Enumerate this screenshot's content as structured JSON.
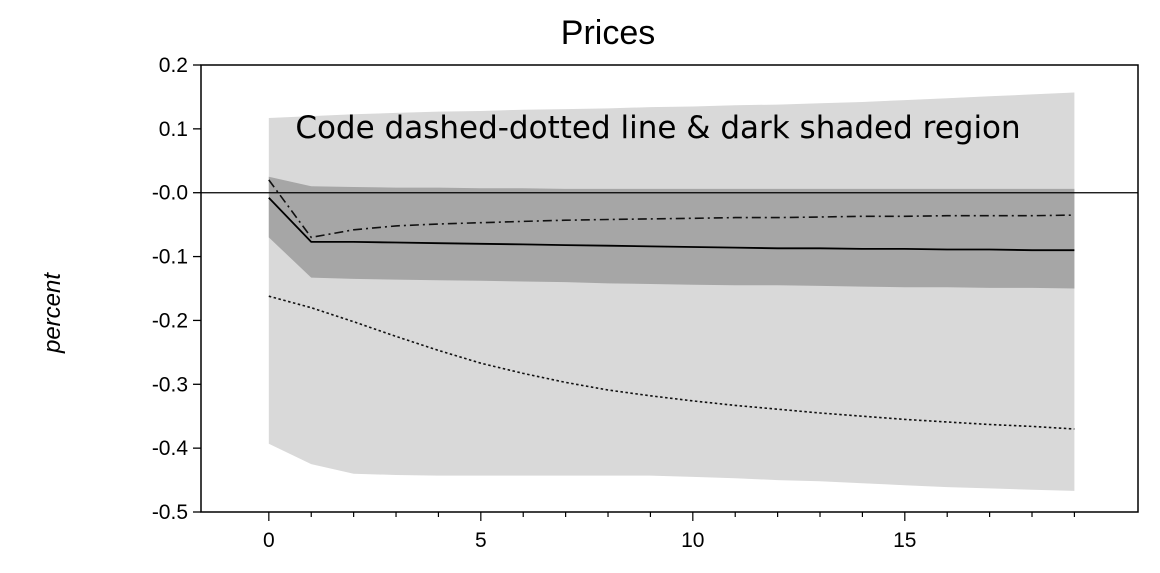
{
  "chart_data": {
    "type": "line",
    "title": "Prices",
    "xlabel": "",
    "ylabel": "percent",
    "xlim": [
      -1.6,
      20.5
    ],
    "ylim": [
      -0.5,
      0.2
    ],
    "x_ticks": [
      0,
      5,
      10,
      15
    ],
    "x_tick_labels": [
      "0",
      "5",
      "10",
      "15"
    ],
    "y_ticks": [
      0.2,
      0.1,
      0.0,
      -0.1,
      -0.2,
      -0.3,
      -0.4,
      -0.5
    ],
    "y_tick_labels": [
      "0.2",
      "0.1",
      "-0.0",
      "-0.1",
      "-0.2",
      "-0.3",
      "-0.4",
      "-0.5"
    ],
    "zero_line": true,
    "annotation": "Code dashed-dotted line & dark shaded region",
    "x": [
      0,
      1,
      2,
      3,
      4,
      5,
      6,
      7,
      8,
      9,
      10,
      11,
      12,
      13,
      14,
      15,
      16,
      17,
      18,
      19
    ],
    "bands": [
      {
        "shade": "light",
        "color": "#d9d9d9",
        "upper": [
          0.117,
          0.12,
          0.123,
          0.125,
          0.127,
          0.128,
          0.13,
          0.131,
          0.132,
          0.134,
          0.135,
          0.137,
          0.138,
          0.14,
          0.142,
          0.145,
          0.148,
          0.151,
          0.154,
          0.157
        ],
        "lower": [
          -0.393,
          -0.425,
          -0.44,
          -0.442,
          -0.443,
          -0.443,
          -0.443,
          -0.443,
          -0.443,
          -0.443,
          -0.445,
          -0.447,
          -0.45,
          -0.452,
          -0.455,
          -0.458,
          -0.461,
          -0.463,
          -0.465,
          -0.467
        ]
      },
      {
        "shade": "dark",
        "color": "#a6a6a6",
        "upper": [
          0.025,
          0.01,
          0.009,
          0.008,
          0.008,
          0.007,
          0.007,
          0.006,
          0.006,
          0.006,
          0.006,
          0.006,
          0.006,
          0.006,
          0.006,
          0.006,
          0.006,
          0.006,
          0.006,
          0.006
        ],
        "lower": [
          -0.07,
          -0.133,
          -0.135,
          -0.136,
          -0.137,
          -0.138,
          -0.139,
          -0.14,
          -0.142,
          -0.143,
          -0.144,
          -0.145,
          -0.145,
          -0.146,
          -0.147,
          -0.148,
          -0.148,
          -0.149,
          -0.149,
          -0.15
        ]
      }
    ],
    "series": [
      {
        "style": "solid",
        "values": [
          -0.008,
          -0.077,
          -0.077,
          -0.078,
          -0.079,
          -0.08,
          -0.081,
          -0.082,
          -0.083,
          -0.084,
          -0.085,
          -0.086,
          -0.087,
          -0.087,
          -0.088,
          -0.088,
          -0.089,
          -0.089,
          -0.09,
          -0.09
        ]
      },
      {
        "style": "dashdot",
        "values": [
          0.02,
          -0.07,
          -0.058,
          -0.052,
          -0.049,
          -0.047,
          -0.045,
          -0.043,
          -0.042,
          -0.041,
          -0.04,
          -0.039,
          -0.039,
          -0.038,
          -0.037,
          -0.037,
          -0.036,
          -0.036,
          -0.036,
          -0.035
        ]
      },
      {
        "style": "dotted",
        "values": [
          -0.162,
          -0.18,
          -0.202,
          -0.225,
          -0.247,
          -0.267,
          -0.283,
          -0.297,
          -0.309,
          -0.318,
          -0.326,
          -0.333,
          -0.339,
          -0.345,
          -0.35,
          -0.355,
          -0.359,
          -0.363,
          -0.366,
          -0.37
        ]
      }
    ]
  }
}
